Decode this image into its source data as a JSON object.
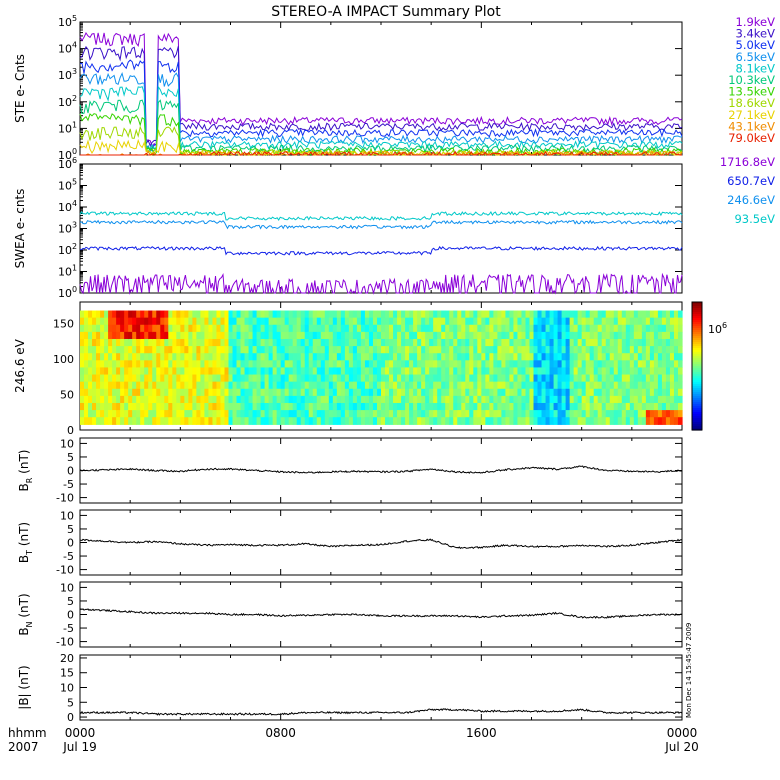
{
  "title": "STEREO-A IMPACT Summary Plot",
  "ste_energies": [
    {
      "label": "1.9keV",
      "color": "#8a00d8"
    },
    {
      "label": "3.4keV",
      "color": "#3a10c8"
    },
    {
      "label": "5.0keV",
      "color": "#1030f0"
    },
    {
      "label": "6.5keV",
      "color": "#1090ee"
    },
    {
      "label": "8.1keV",
      "color": "#00c8c8"
    },
    {
      "label": "10.3keV",
      "color": "#00c87a"
    },
    {
      "label": "13.5keV",
      "color": "#36d400"
    },
    {
      "label": "18.6keV",
      "color": "#a0d800"
    },
    {
      "label": "27.1keV",
      "color": "#e8d200"
    },
    {
      "label": "43.1keV",
      "color": "#f08c00"
    },
    {
      "label": "79.0keV",
      "color": "#e82000"
    }
  ],
  "swea_energies": [
    {
      "label": "1716.8eV",
      "color": "#8a00d8"
    },
    {
      "label": "650.7eV",
      "color": "#1020e8"
    },
    {
      "label": "246.6eV",
      "color": "#1090ee"
    },
    {
      "label": "93.5eV",
      "color": "#00c8c8"
    }
  ],
  "colorbar_label": "10",
  "colorbar_exp": "6",
  "side_stamp": "Mon Dec 14 15:45:47 2009",
  "x_axis": {
    "corner_top": "hhmm",
    "corner_bottom": "2007",
    "ticks": [
      {
        "top": "0000",
        "bottom": "Jul 19"
      },
      {
        "top": "0800",
        "bottom": ""
      },
      {
        "top": "1600",
        "bottom": ""
      },
      {
        "top": "0000",
        "bottom": "Jul 20"
      }
    ]
  },
  "chart_data": [
    {
      "type": "line",
      "ylabel": "STE e- Cnts",
      "yscale": "log",
      "ylim_exp": [
        0,
        5
      ],
      "ytick_exps": [
        0,
        1,
        2,
        3,
        4,
        5
      ],
      "levels": [
        {
          "name": "1.9keV",
          "value": 20
        },
        {
          "name": "3.4keV",
          "value": 12
        },
        {
          "name": "5.0keV",
          "value": 7
        },
        {
          "name": "6.5keV",
          "value": 4
        },
        {
          "name": "8.1keV",
          "value": 2.5
        },
        {
          "name": "10.3keV",
          "value": 1.8
        },
        {
          "name": "13.5keV",
          "value": 1.4
        },
        {
          "name": "18.6keV",
          "value": 1.2
        },
        {
          "name": "27.1keV",
          "value": 1.1
        },
        {
          "name": "43.1keV",
          "value": 1.05
        },
        {
          "name": "79.0keV",
          "value": 1.02
        }
      ],
      "early_peak": {
        "value": 30000
      }
    },
    {
      "type": "line",
      "ylabel": "SWEA e- cnts",
      "yscale": "log",
      "ylim_exp": [
        0,
        6
      ],
      "ytick_exps": [
        0,
        1,
        2,
        3,
        4,
        5,
        6
      ],
      "levels": [
        {
          "name": "93.5eV",
          "value": 5000
        },
        {
          "name": "246.6eV",
          "value": 2000
        },
        {
          "name": "650.7eV",
          "value": 120
        },
        {
          "name": "1716.8eV",
          "value": 3
        }
      ]
    },
    {
      "type": "heatmap",
      "ylabel": "246.6 eV",
      "ylim": [
        0,
        180
      ],
      "yticks": [
        0,
        50,
        100,
        150
      ]
    },
    {
      "type": "line",
      "ylabel": "B",
      "ylabel_sub": "R",
      "ylabel_unit": "(nT)",
      "ylim": [
        -12,
        12
      ],
      "yticks": [
        -10,
        -5,
        0,
        5,
        10
      ],
      "x": [
        0,
        1,
        2,
        3,
        4,
        5,
        6,
        7,
        8,
        9,
        10,
        11,
        12,
        13,
        14,
        15,
        16,
        17,
        18,
        19,
        20,
        21,
        22,
        23,
        24
      ],
      "y": [
        0,
        0.2,
        0.5,
        0,
        -0.3,
        0.5,
        0.5,
        0,
        -0.5,
        -0.8,
        -0.5,
        -0.3,
        -0.5,
        -0.3,
        0.5,
        -0.5,
        -0.8,
        0.3,
        1,
        0.5,
        1.5,
        0,
        -0.3,
        -0.5,
        0
      ]
    },
    {
      "type": "line",
      "ylabel": "B",
      "ylabel_sub": "T",
      "ylabel_unit": "(nT)",
      "ylim": [
        -12,
        12
      ],
      "yticks": [
        -10,
        -5,
        0,
        5,
        10
      ],
      "x": [
        0,
        1,
        2,
        3,
        4,
        5,
        6,
        7,
        8,
        9,
        10,
        11,
        12,
        13,
        14,
        15,
        16,
        17,
        18,
        19,
        20,
        21,
        22,
        23,
        24
      ],
      "y": [
        1,
        0.5,
        0,
        0.3,
        -0.5,
        -1,
        -0.8,
        -1,
        -1,
        -0.5,
        -1.5,
        -1,
        -0.8,
        0.5,
        1,
        -2,
        -1.8,
        -1,
        -1.5,
        -1.5,
        -1,
        -1.5,
        -1,
        0,
        1
      ]
    },
    {
      "type": "line",
      "ylabel": "B",
      "ylabel_sub": "N",
      "ylabel_unit": "(nT)",
      "ylim": [
        -12,
        12
      ],
      "yticks": [
        -10,
        -5,
        0,
        5,
        10
      ],
      "x": [
        0,
        1,
        2,
        3,
        4,
        5,
        6,
        7,
        8,
        9,
        10,
        11,
        12,
        13,
        14,
        15,
        16,
        17,
        18,
        19,
        20,
        21,
        22,
        23,
        24
      ],
      "y": [
        2,
        1.5,
        1,
        0.5,
        0.5,
        0.5,
        0,
        0,
        -0.5,
        -0.3,
        0,
        0,
        -0.5,
        -0.5,
        -0.5,
        -0.5,
        -1,
        -0.5,
        -0.3,
        0.5,
        -1,
        -1,
        -0.5,
        0,
        0
      ]
    },
    {
      "type": "line",
      "ylabel": "|B|",
      "ylabel_sub": "",
      "ylabel_unit": "(nT)",
      "ylim": [
        -1,
        21
      ],
      "yticks": [
        0,
        5,
        10,
        15,
        20
      ],
      "x": [
        0,
        1,
        2,
        3,
        4,
        5,
        6,
        7,
        8,
        9,
        10,
        11,
        12,
        13,
        14,
        15,
        16,
        17,
        18,
        19,
        20,
        21,
        22,
        23,
        24
      ],
      "y": [
        1.5,
        1.5,
        1.5,
        1,
        1,
        1,
        1,
        1,
        1,
        1.5,
        1.5,
        1.5,
        1.5,
        1.5,
        2.5,
        2.5,
        2,
        2,
        2,
        2,
        2.5,
        1.5,
        1.5,
        1.5,
        1.5
      ]
    }
  ]
}
